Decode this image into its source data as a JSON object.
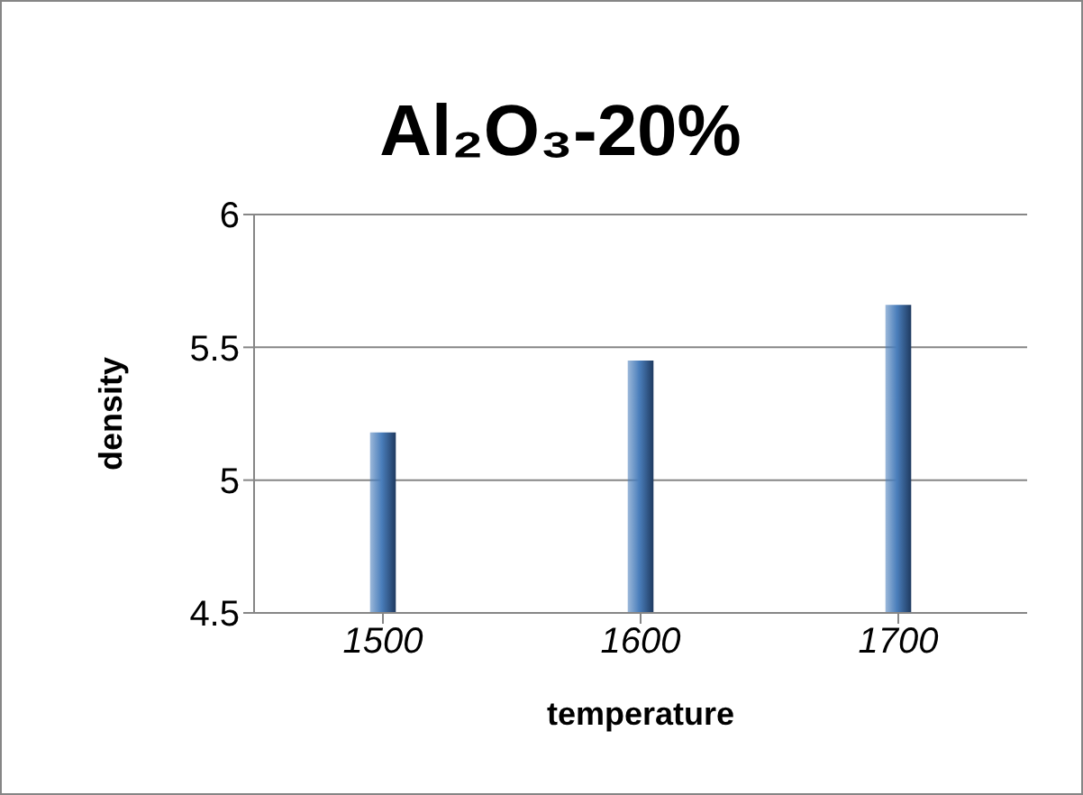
{
  "chart_data": {
    "type": "bar",
    "title": "Al₂O₃-20%",
    "xlabel": "temperature",
    "ylabel": "density",
    "categories": [
      "1500",
      "1600",
      "1700"
    ],
    "values": [
      5.18,
      5.45,
      5.66
    ],
    "color": "#4a7ebb",
    "ylim": [
      4.5,
      6
    ],
    "yticks": [
      4.5,
      5,
      5.5,
      6
    ],
    "grid": "y"
  }
}
